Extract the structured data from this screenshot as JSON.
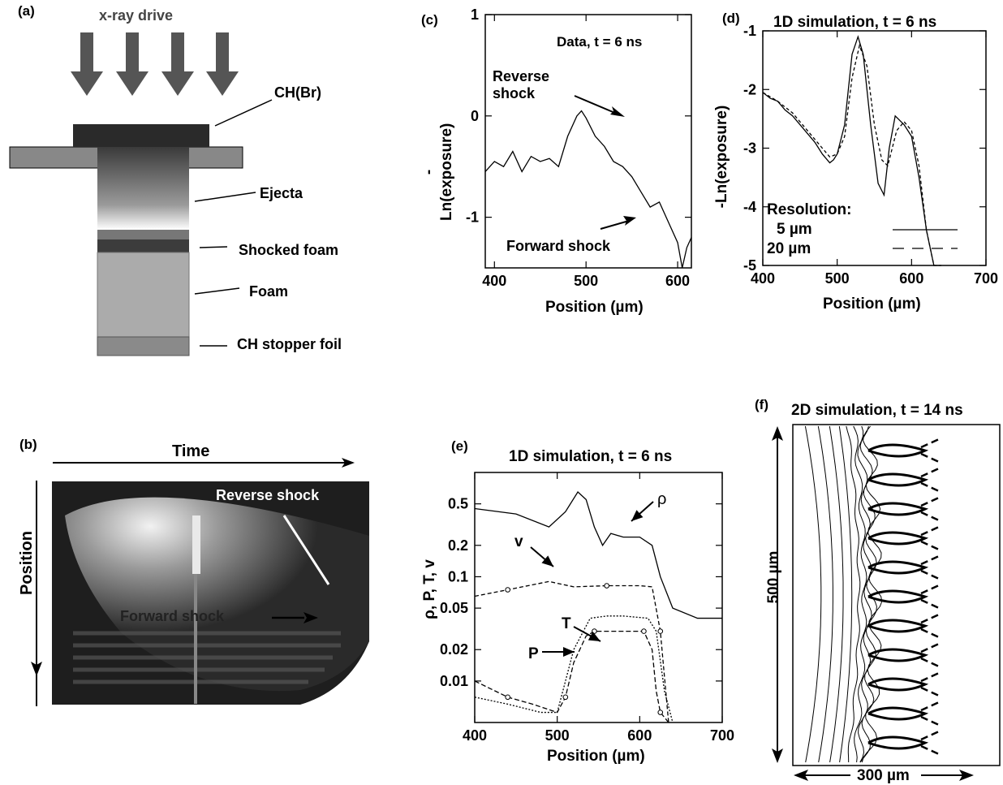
{
  "panels": {
    "a": {
      "label": "(a)",
      "drive": "x-ray drive",
      "parts": [
        "CH(Br)",
        "Ejecta",
        "Shocked foam",
        "Foam",
        "CH stopper foil"
      ]
    },
    "b": {
      "label": "(b)",
      "time": "Time",
      "position": "Position",
      "reverse": "Reverse shock",
      "forward": "Forward shock"
    },
    "c": {
      "label": "(c)",
      "title": "Data, t = 6 ns",
      "reverse1": "Reverse",
      "reverse2": "shock",
      "forward": "Forward shock",
      "xlabel": "Position (µm)",
      "ylabel": "-Ln(exposure)"
    },
    "d": {
      "label": "(d)",
      "title": "1D simulation, t = 6 ns",
      "xlabel": "Position (µm)",
      "ylabel": "-Ln(exposure)",
      "legend_title": "Resolution:",
      "legend": [
        "5 µm",
        "20 µm"
      ]
    },
    "e": {
      "label": "(e)",
      "title": "1D simulation, t = 6 ns",
      "xlabel": "Position (µm)",
      "ylabel": "ρ, P, T, v",
      "curves": [
        "ρ",
        "v",
        "T",
        "P"
      ]
    },
    "f": {
      "label": "(f)",
      "title": "2D simulation, t = 14 ns",
      "vscale": "500 µm",
      "hscale": "300 µm"
    }
  },
  "chart_data": [
    {
      "panel": "c",
      "type": "line",
      "title": "Data, t = 6 ns",
      "xlabel": "Position (µm)",
      "ylabel": "-Ln(exposure)",
      "xlim": [
        390,
        615
      ],
      "ylim": [
        -1.5,
        1
      ],
      "xticks": [
        400,
        500,
        600
      ],
      "yticks": [
        1,
        0,
        -1
      ],
      "x": [
        390,
        400,
        410,
        420,
        430,
        440,
        450,
        460,
        470,
        480,
        490,
        495,
        500,
        510,
        520,
        530,
        540,
        550,
        560,
        570,
        580,
        590,
        600,
        605,
        610,
        615
      ],
      "y": [
        -0.55,
        -0.45,
        -0.5,
        -0.35,
        -0.55,
        -0.4,
        -0.45,
        -0.42,
        -0.5,
        -0.2,
        0.0,
        0.05,
        -0.02,
        -0.2,
        -0.3,
        -0.45,
        -0.5,
        -0.6,
        -0.75,
        -0.9,
        -0.85,
        -1.05,
        -1.25,
        -1.5,
        -1.3,
        -1.2
      ]
    },
    {
      "panel": "d",
      "type": "line",
      "title": "1D simulation, t = 6 ns",
      "xlabel": "Position (µm)",
      "ylabel": "-Ln(exposure)",
      "xlim": [
        400,
        700
      ],
      "ylim": [
        -5,
        -1
      ],
      "xticks": [
        400,
        500,
        600,
        700
      ],
      "yticks": [
        -1,
        -2,
        -3,
        -4,
        -5
      ],
      "series": [
        {
          "name": "5 µm",
          "x": [
            400,
            410,
            420,
            430,
            440,
            450,
            460,
            470,
            480,
            490,
            495,
            500,
            510,
            520,
            528,
            535,
            545,
            555,
            563,
            570,
            578,
            590,
            600,
            610,
            620,
            630,
            640
          ],
          "y": [
            -2.05,
            -2.15,
            -2.2,
            -2.35,
            -2.45,
            -2.6,
            -2.75,
            -2.9,
            -3.1,
            -3.25,
            -3.2,
            -3.1,
            -2.6,
            -1.4,
            -1.1,
            -1.4,
            -2.6,
            -3.6,
            -3.8,
            -3.0,
            -2.45,
            -2.6,
            -2.8,
            -3.5,
            -4.4,
            -5.0,
            -5.0
          ]
        },
        {
          "name": "20 µm",
          "x": [
            400,
            420,
            440,
            460,
            480,
            490,
            500,
            510,
            520,
            530,
            540,
            550,
            560,
            568,
            580,
            590,
            600,
            610,
            620,
            630,
            640
          ],
          "y": [
            -2.05,
            -2.2,
            -2.4,
            -2.7,
            -3.0,
            -3.15,
            -3.1,
            -2.8,
            -1.8,
            -1.25,
            -1.6,
            -2.6,
            -3.2,
            -3.3,
            -2.7,
            -2.55,
            -2.7,
            -3.3,
            -4.4,
            -5.0,
            -5.0
          ]
        }
      ]
    },
    {
      "panel": "e",
      "type": "line",
      "title": "1D simulation, t = 6 ns",
      "xlabel": "Position (µm)",
      "ylabel": "ρ, P, T, v",
      "ylog": true,
      "xlim": [
        400,
        700
      ],
      "ylim": [
        0.004,
        1
      ],
      "xticks": [
        400,
        500,
        600,
        700
      ],
      "yticks": [
        0.5,
        0.2,
        0.1,
        0.05,
        0.02,
        0.01
      ],
      "series": [
        {
          "name": "ρ",
          "x": [
            400,
            450,
            490,
            510,
            525,
            535,
            545,
            555,
            565,
            580,
            600,
            615,
            625,
            640,
            670,
            700
          ],
          "y": [
            0.45,
            0.4,
            0.3,
            0.42,
            0.65,
            0.55,
            0.3,
            0.2,
            0.26,
            0.24,
            0.24,
            0.2,
            0.1,
            0.05,
            0.04,
            0.04
          ]
        },
        {
          "name": "v",
          "x": [
            400,
            440,
            490,
            520,
            560,
            600,
            615,
            625,
            635
          ],
          "y": [
            0.065,
            0.075,
            0.09,
            0.08,
            0.082,
            0.082,
            0.08,
            0.03,
            0.004
          ]
        },
        {
          "name": "T",
          "x": [
            400,
            440,
            480,
            500,
            520,
            540,
            560,
            580,
            610,
            620,
            630,
            640
          ],
          "y": [
            0.007,
            0.006,
            0.005,
            0.005,
            0.02,
            0.04,
            0.042,
            0.042,
            0.04,
            0.03,
            0.008,
            0.004
          ]
        },
        {
          "name": "P",
          "x": [
            400,
            440,
            470,
            500,
            510,
            520,
            535,
            545,
            560,
            580,
            605,
            615,
            620,
            625,
            635
          ],
          "y": [
            0.01,
            0.007,
            0.006,
            0.005,
            0.007,
            0.015,
            0.027,
            0.03,
            0.03,
            0.03,
            0.03,
            0.02,
            0.008,
            0.005,
            0.004
          ]
        }
      ]
    }
  ]
}
